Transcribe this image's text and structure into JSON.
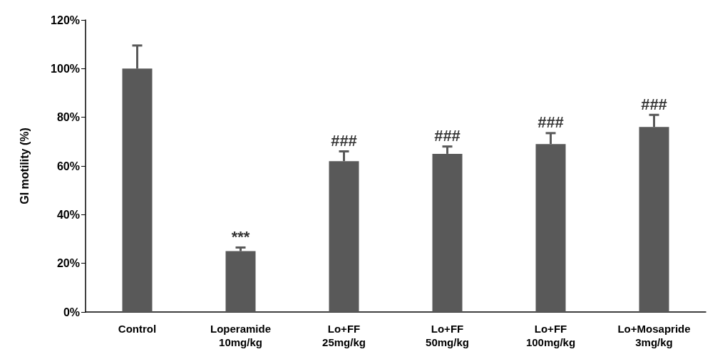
{
  "chart_data": {
    "type": "bar",
    "ylabel": "GI motility (%)",
    "categories": [
      "Control",
      "Loperamide\n10mg/kg",
      "Lo+FF\n25mg/kg",
      "Lo+FF\n50mg/kg",
      "Lo+FF\n100mg/kg",
      "Lo+Mosapride\n3mg/kg"
    ],
    "values": [
      100,
      25,
      62,
      65,
      69,
      76
    ],
    "errors": [
      [
        100,
        109.5
      ],
      [
        25,
        26.5
      ],
      [
        62,
        66
      ],
      [
        65,
        68
      ],
      [
        69,
        73.5
      ],
      [
        76,
        81
      ]
    ],
    "color": "#595959",
    "ylim": [
      0,
      120
    ],
    "yticks": [
      {
        "value": 0,
        "label": "0%"
      },
      {
        "value": 20,
        "label": "20%"
      },
      {
        "value": 40,
        "label": "40%"
      },
      {
        "value": 60,
        "label": "60%"
      },
      {
        "value": 80,
        "label": "80%"
      },
      {
        "value": 100,
        "label": "100%"
      },
      {
        "value": 120,
        "label": "120%"
      }
    ],
    "annotations": [
      {
        "text": "***",
        "x": "Loperamide\n10mg/kg",
        "y": 26.5
      },
      {
        "text": "###",
        "x": "Lo+FF\n25mg/kg",
        "y": 66
      },
      {
        "text": "###",
        "x": "Lo+FF\n50mg/kg",
        "y": 68
      },
      {
        "text": "###",
        "x": "Lo+FF\n100mg/kg",
        "y": 73.5
      },
      {
        "text": "###",
        "x": "Lo+Mosapride\n3mg/kg",
        "y": 81
      }
    ],
    "grid": false
  }
}
